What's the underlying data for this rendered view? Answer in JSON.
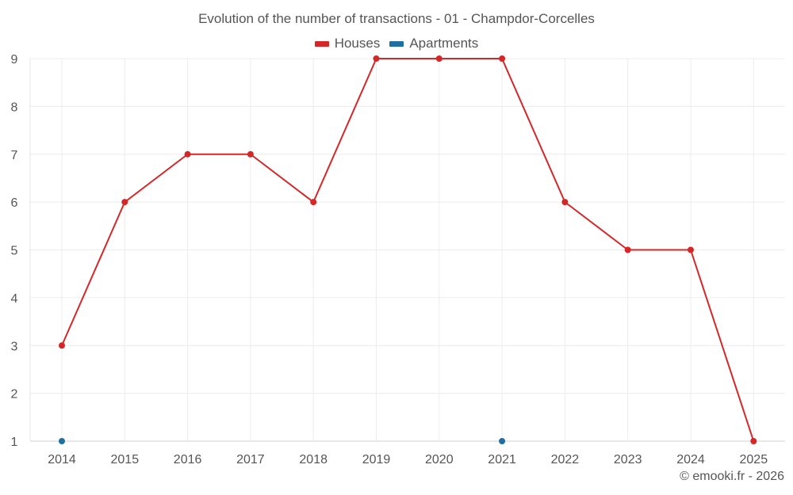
{
  "chart_data": {
    "type": "line",
    "title": "Evolution of the number of transactions - 01 - Champdor-Corcelles",
    "xlabel": "",
    "ylabel": "",
    "categories": [
      "2014",
      "2015",
      "2016",
      "2017",
      "2018",
      "2019",
      "2020",
      "2021",
      "2022",
      "2023",
      "2024",
      "2025"
    ],
    "ylim": [
      1,
      9
    ],
    "yticks": [
      1,
      2,
      3,
      4,
      5,
      6,
      7,
      8,
      9
    ],
    "grid": true,
    "legend_position": "top-center",
    "series": [
      {
        "name": "Houses",
        "color": "#d62728",
        "values": [
          3,
          6,
          7,
          7,
          6,
          9,
          9,
          9,
          6,
          5,
          5,
          1
        ]
      },
      {
        "name": "Apartments",
        "color": "#1f6fa3",
        "values": [
          1,
          null,
          null,
          null,
          null,
          null,
          null,
          1,
          null,
          null,
          null,
          null
        ]
      }
    ]
  },
  "credit": "© emooki.fr - 2026"
}
